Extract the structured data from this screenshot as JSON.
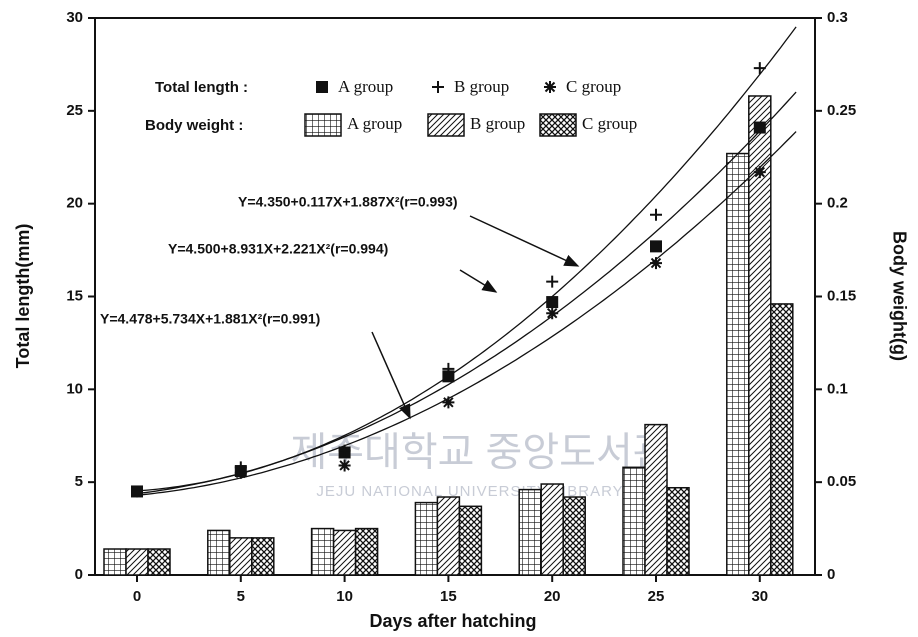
{
  "chart_data": {
    "type": "bar",
    "categories": [
      0,
      5,
      10,
      15,
      20,
      25,
      30
    ],
    "xlabel": "Days after hatching",
    "ylabel": "Total length(mm)",
    "y2label": "Body weight(g)",
    "ylim": [
      0,
      30
    ],
    "yticks": [
      0,
      5,
      10,
      15,
      20,
      25,
      30
    ],
    "y2lim": [
      0,
      0.3
    ],
    "y2ticks": [
      0,
      0.05,
      0.1,
      0.15,
      0.2,
      0.25,
      0.3
    ],
    "legend_groups": [
      "Total length :",
      "Body weight :"
    ],
    "series": [
      {
        "name": "A group",
        "type": "bar",
        "axis": "y2",
        "pattern": "grid",
        "values": [
          0.014,
          0.024,
          0.025,
          0.039,
          0.046,
          0.058,
          0.227
        ]
      },
      {
        "name": "B group",
        "type": "bar",
        "axis": "y2",
        "pattern": "hatch",
        "values": [
          0.014,
          0.02,
          0.024,
          0.042,
          0.049,
          0.081,
          0.258
        ]
      },
      {
        "name": "C group",
        "type": "bar",
        "axis": "y2",
        "pattern": "crosshatch",
        "values": [
          0.014,
          0.02,
          0.025,
          0.037,
          0.042,
          0.047,
          0.146
        ]
      },
      {
        "name": "A group",
        "type": "scatter",
        "marker": "square",
        "values": [
          4.5,
          5.6,
          6.6,
          10.7,
          14.7,
          17.7,
          24.1
        ]
      },
      {
        "name": "B group",
        "type": "scatter",
        "marker": "plus",
        "values": [
          4.5,
          5.8,
          6.7,
          11.1,
          15.8,
          19.4,
          27.3
        ]
      },
      {
        "name": "C group",
        "type": "scatter",
        "marker": "star",
        "values": [
          4.5,
          5.5,
          5.9,
          9.3,
          14.1,
          16.8,
          21.7
        ]
      }
    ],
    "annotations": [
      "Y=4.350+0.117X+1.887X²(r=0.993)",
      "Y=4.500+8.931X+2.221X²(r=0.994)",
      "Y=4.478+5.734X+1.881X²(r=0.991)"
    ],
    "watermark": [
      "제주대학교 중앙도서관",
      "JEJU NATIONAL UNIVERSITY LIBRARY"
    ]
  }
}
